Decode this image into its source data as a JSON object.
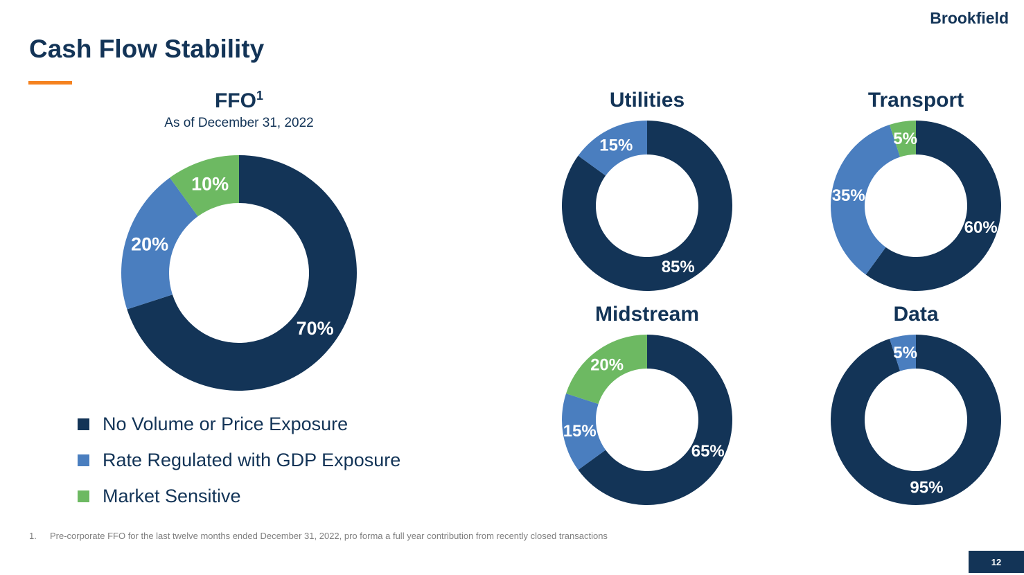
{
  "header": {
    "title": "Cash Flow Stability",
    "logo": "Brookfield"
  },
  "colors": {
    "navy": "#133457",
    "blue": "#4a7ebf",
    "green": "#6db962",
    "accent": "#f5821f"
  },
  "ffo": {
    "title": "FFO",
    "superscript": "1",
    "subtitle": "As of December 31, 2022"
  },
  "legend": [
    {
      "label": "No Volume or Price Exposure",
      "color": "#133457"
    },
    {
      "label": "Rate Regulated with GDP Exposure",
      "color": "#4a7ebf"
    },
    {
      "label": "Market Sensitive",
      "color": "#6db962"
    }
  ],
  "chart_data": [
    {
      "type": "pie",
      "donut": true,
      "title": "FFO",
      "categories": [
        "No Volume or Price Exposure",
        "Rate Regulated with GDP Exposure",
        "Market Sensitive"
      ],
      "values": [
        70,
        20,
        10
      ],
      "labels": [
        "70%",
        "20%",
        "10%"
      ]
    },
    {
      "type": "pie",
      "donut": true,
      "title": "Utilities",
      "categories": [
        "No Volume or Price Exposure",
        "Rate Regulated with GDP Exposure"
      ],
      "values": [
        85,
        15
      ],
      "labels": [
        "85%",
        "15%"
      ]
    },
    {
      "type": "pie",
      "donut": true,
      "title": "Transport",
      "categories": [
        "No Volume or Price Exposure",
        "Rate Regulated with GDP Exposure",
        "Market Sensitive"
      ],
      "values": [
        60,
        35,
        5
      ],
      "labels": [
        "60%",
        "35%",
        "5%"
      ]
    },
    {
      "type": "pie",
      "donut": true,
      "title": "Midstream",
      "categories": [
        "No Volume or Price Exposure",
        "Rate Regulated with GDP Exposure",
        "Market Sensitive"
      ],
      "values": [
        65,
        15,
        20
      ],
      "labels": [
        "65%",
        "15%",
        "20%"
      ]
    },
    {
      "type": "pie",
      "donut": true,
      "title": "Data",
      "categories": [
        "No Volume or Price Exposure",
        "Rate Regulated with GDP Exposure"
      ],
      "values": [
        95,
        5
      ],
      "labels": [
        "95%",
        "5%"
      ]
    }
  ],
  "footnote": {
    "number": "1.",
    "text": "Pre-corporate FFO for the last twelve months ended December 31, 2022, pro forma a full year contribution from recently closed transactions"
  },
  "page_number": "12"
}
